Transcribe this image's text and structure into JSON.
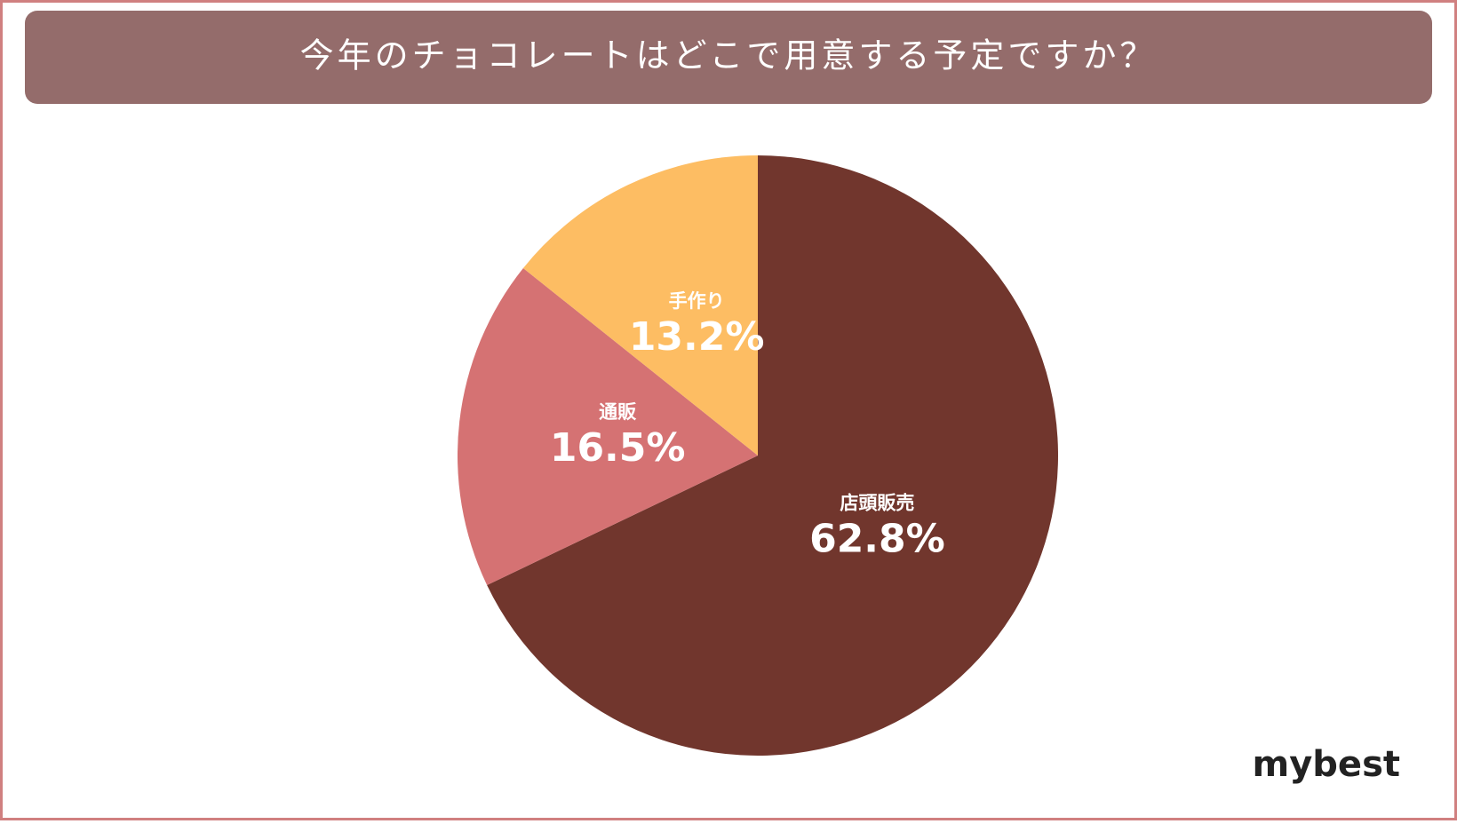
{
  "chart_data": {
    "type": "pie",
    "title": "今年のチョコレートはどこで用意する予定ですか？",
    "categories": [
      "店頭販売",
      "通販",
      "手作り"
    ],
    "values": [
      62.8,
      16.5,
      13.2
    ],
    "value_labels": [
      "62.8%",
      "16.5%",
      "13.2%"
    ],
    "colors": [
      "#71362d",
      "#d57273",
      "#fdbd63"
    ]
  },
  "logo": "mybest"
}
